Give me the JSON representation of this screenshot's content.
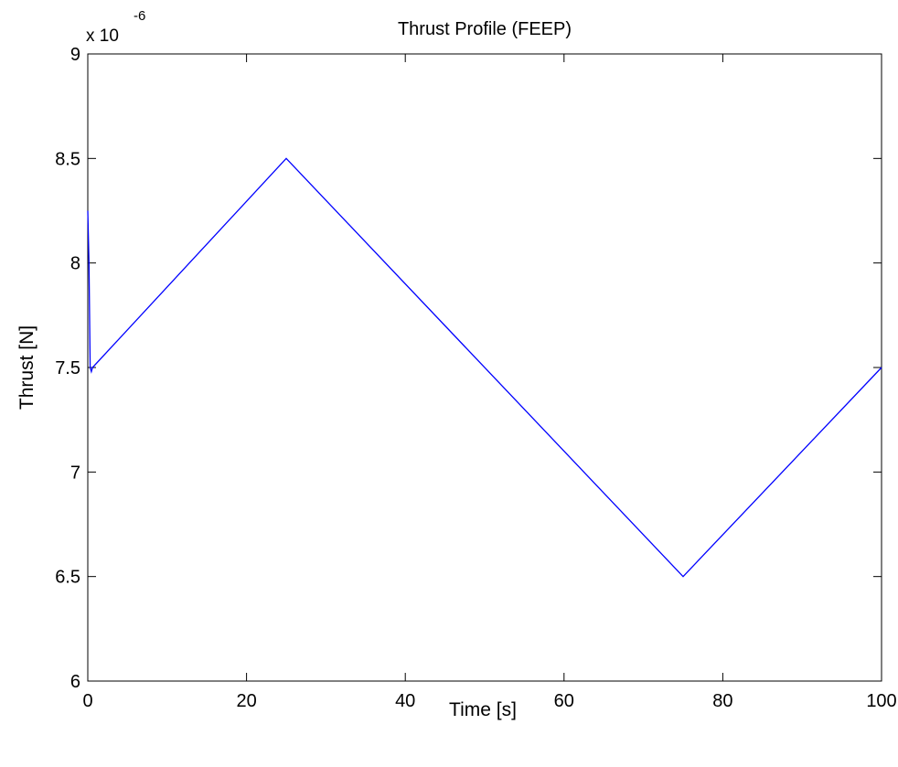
{
  "chart_data": {
    "type": "line",
    "title": "Thrust Profile (FEEP)",
    "xlabel": "Time [s]",
    "ylabel": "Thrust [N]",
    "xlim": [
      0,
      100
    ],
    "ylim": [
      6,
      9
    ],
    "xticks": [
      0,
      20,
      40,
      60,
      80,
      100
    ],
    "xtick_labels": [
      "0",
      "20",
      "40",
      "60",
      "80",
      "100"
    ],
    "yticks": [
      6,
      6.5,
      7,
      7.5,
      8,
      8.5,
      9
    ],
    "ytick_labels": [
      "6",
      "6.5",
      "7",
      "7.5",
      "8",
      "8.5",
      "9"
    ],
    "y_exponent": {
      "base": "x 10",
      "power": "-6"
    },
    "grid": false,
    "series": [
      {
        "color": "#0000ff",
        "x": [
          0,
          0.15,
          0.3,
          0.45,
          0.6,
          25,
          75,
          100
        ],
        "y": [
          8.25,
          8.0,
          7.5,
          7.48,
          7.5,
          8.5,
          6.5,
          7.5
        ]
      }
    ]
  }
}
